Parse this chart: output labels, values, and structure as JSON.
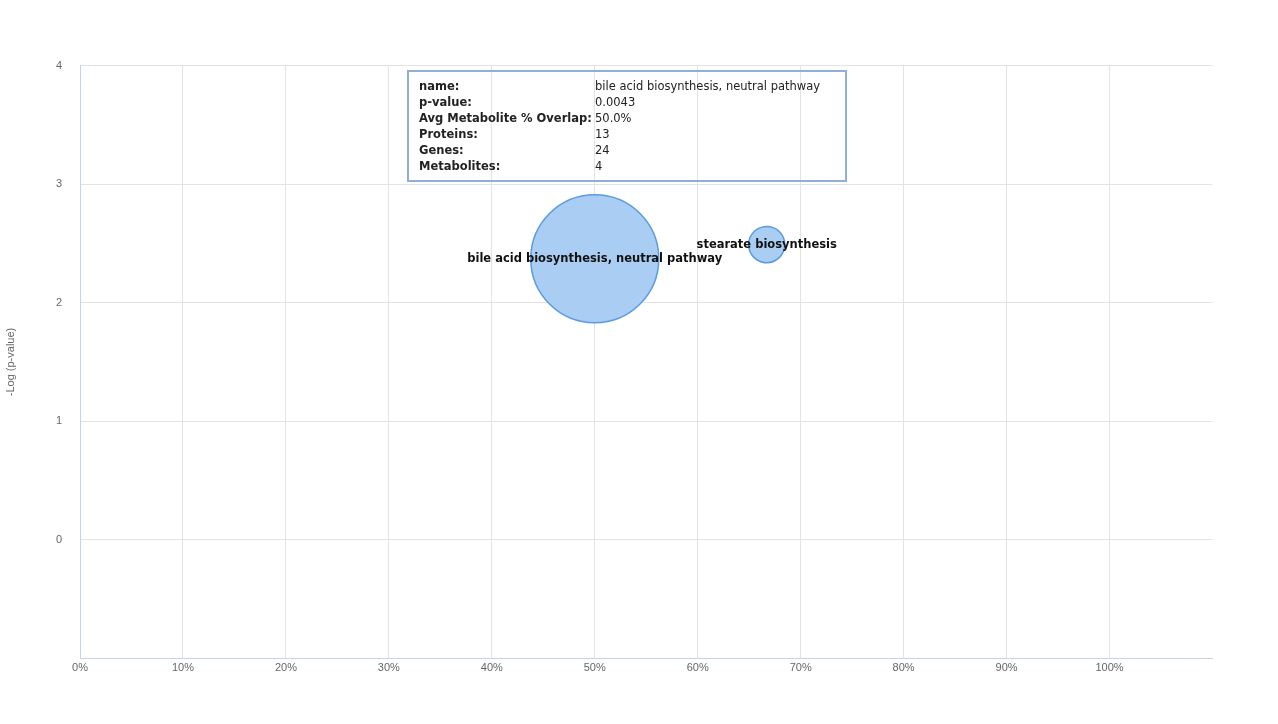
{
  "chart_data": {
    "type": "bubble",
    "ylabel": "-Log (p-value)",
    "series": [
      {
        "name": "bile acid biosynthesis, neutral pathway",
        "color": "#a9cdf3",
        "x": [
          50
        ],
        "values": [
          2.37
        ],
        "sizes": [
          1
        ]
      },
      {
        "name": "stearate biosynthesis",
        "color": "#a9cdf3",
        "x": [
          66.7
        ],
        "values": [
          2.49
        ],
        "sizes": [
          0.08
        ]
      }
    ],
    "xlim": [
      0,
      110
    ],
    "xticks": [
      {
        "value": 0,
        "label": "0%"
      },
      {
        "value": 10,
        "label": "10%"
      },
      {
        "value": 20,
        "label": "20%"
      },
      {
        "value": 30,
        "label": "30%"
      },
      {
        "value": 40,
        "label": "40%"
      },
      {
        "value": 50,
        "label": "50%"
      },
      {
        "value": 60,
        "label": "60%"
      },
      {
        "value": 70,
        "label": "70%"
      },
      {
        "value": 80,
        "label": "80%"
      },
      {
        "value": 90,
        "label": "90%"
      },
      {
        "value": 100,
        "label": "100%"
      }
    ],
    "ylim": [
      -1,
      4
    ],
    "yticks": [
      {
        "value": -1,
        "label": null
      },
      0,
      1,
      2,
      3,
      4
    ],
    "grid": true,
    "legend": false,
    "annotations": [
      "name: bile acid biosynthesis, neutral pathway",
      "p-value: 0.0043",
      "Avg Metabolite % Overlap: 50.0%",
      "Proteins: 13",
      "Genes: 24",
      "Metabolites: 4"
    ]
  }
}
